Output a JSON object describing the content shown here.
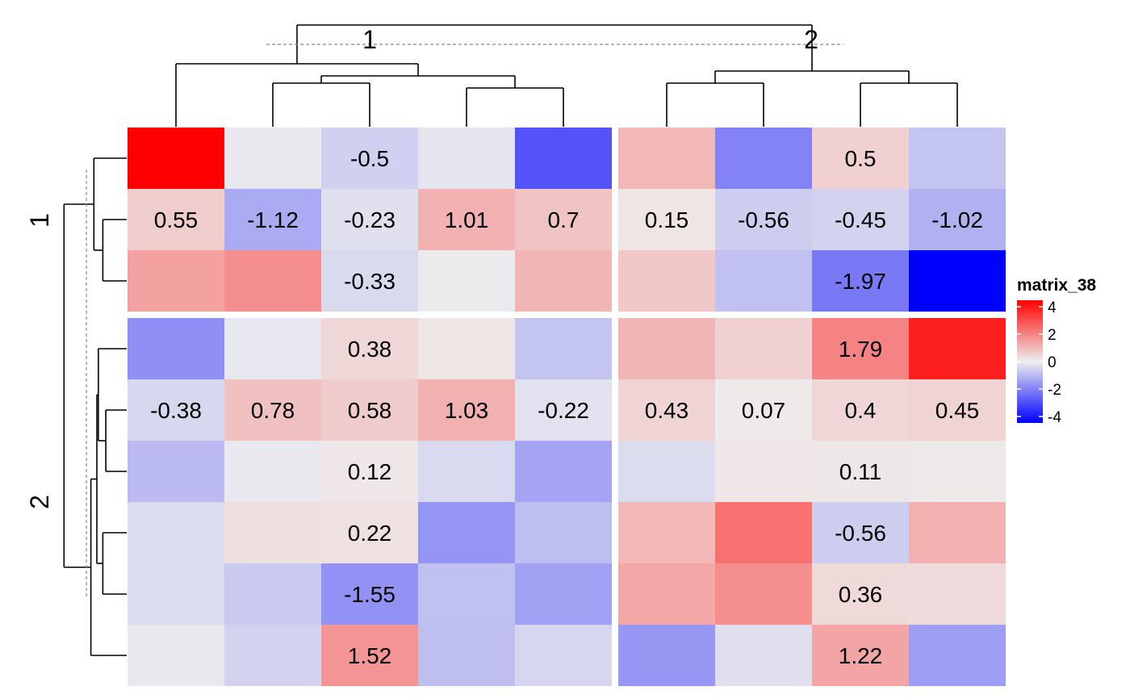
{
  "chart_data": {
    "type": "heatmap",
    "title": "",
    "column_slices": [
      "1",
      "2"
    ],
    "row_slices": [
      "1",
      "2"
    ],
    "column_slice_sizes": [
      5,
      4
    ],
    "row_slice_sizes": [
      3,
      6
    ],
    "values": [
      [
        4.2,
        -0.1,
        -0.5,
        -0.15,
        -2.6,
        0.9,
        -1.8,
        0.5,
        -0.7
      ],
      [
        0.55,
        -1.12,
        -0.23,
        1.01,
        0.7,
        0.15,
        -0.56,
        -0.45,
        -1.02
      ],
      [
        1.3,
        1.6,
        -0.33,
        -0.05,
        0.95,
        0.65,
        -0.75,
        -1.97,
        -4.0
      ],
      [
        -1.6,
        -0.12,
        0.38,
        0.15,
        -0.7,
        0.95,
        0.5,
        1.79,
        3.5
      ],
      [
        -0.38,
        0.78,
        0.58,
        1.03,
        -0.22,
        0.43,
        0.07,
        0.4,
        0.45
      ],
      [
        -0.85,
        -0.1,
        0.12,
        -0.35,
        -1.25,
        -0.3,
        0.12,
        0.11,
        0.08
      ],
      [
        -0.3,
        0.25,
        0.22,
        -1.5,
        -0.8,
        0.9,
        2.1,
        -0.56,
        1.05
      ],
      [
        -0.3,
        -0.6,
        -1.55,
        -0.75,
        -1.3,
        1.2,
        1.6,
        0.36,
        0.32
      ],
      [
        -0.1,
        -0.45,
        1.52,
        -0.8,
        -0.4,
        -1.45,
        -0.25,
        1.22,
        -1.35
      ]
    ],
    "labels": [
      [
        "",
        "",
        "-0.5",
        "",
        "",
        "",
        "",
        "0.5",
        ""
      ],
      [
        "0.55",
        "-1.12",
        "-0.23",
        "1.01",
        "0.7",
        "0.15",
        "-0.56",
        "-0.45",
        "-1.02"
      ],
      [
        "",
        "",
        "-0.33",
        "",
        "",
        "",
        "",
        "-1.97",
        ""
      ],
      [
        "",
        "",
        "0.38",
        "",
        "",
        "",
        "",
        "1.79",
        ""
      ],
      [
        "-0.38",
        "0.78",
        "0.58",
        "1.03",
        "-0.22",
        "0.43",
        "0.07",
        "0.4",
        "0.45"
      ],
      [
        "",
        "",
        "0.12",
        "",
        "",
        "",
        "",
        "0.11",
        ""
      ],
      [
        "",
        "",
        "0.22",
        "",
        "",
        "",
        "",
        "-0.56",
        ""
      ],
      [
        "",
        "",
        "-1.55",
        "",
        "",
        "",
        "",
        "0.36",
        ""
      ],
      [
        "",
        "",
        "1.52",
        "",
        "",
        "",
        "",
        "1.22",
        ""
      ]
    ],
    "legend": {
      "title": "matrix_38",
      "ticks": [
        "4",
        "2",
        "0",
        "-2",
        "-4"
      ],
      "tick_values": [
        4,
        2,
        0,
        -2,
        -4
      ],
      "range": [
        -4,
        4
      ]
    },
    "colors": {
      "low": "#0000ff",
      "mid": "#eeeeee",
      "high": "#ff0000"
    },
    "column_dendrogram": {
      "order_leaves": [
        0,
        1,
        2,
        3,
        4,
        5,
        6,
        7,
        8
      ],
      "merges": [
        [
          1,
          2,
          0.9
        ],
        [
          3,
          4,
          0.8
        ],
        [
          -1,
          -2,
          1.05
        ],
        [
          0,
          -3,
          1.3
        ],
        [
          5,
          6,
          0.9
        ],
        [
          7,
          8,
          0.9
        ],
        [
          -5,
          -6,
          1.15
        ],
        [
          -4,
          -7,
          2.1
        ]
      ]
    },
    "row_dendrogram": {
      "merges": [
        [
          1,
          2,
          0.8
        ],
        [
          0,
          -1,
          1.1
        ],
        [
          4,
          5,
          0.7
        ],
        [
          6,
          7,
          0.8
        ],
        [
          -3,
          3,
          0.95
        ],
        [
          -4,
          -5,
          1.0
        ],
        [
          -6,
          8,
          1.2
        ],
        [
          -2,
          -7,
          2.1
        ]
      ]
    }
  }
}
